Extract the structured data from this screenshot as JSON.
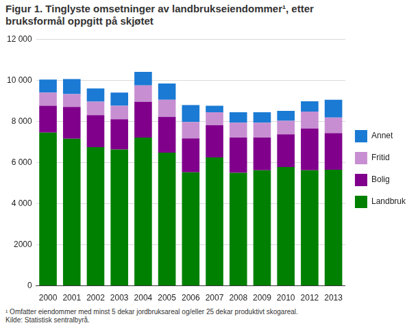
{
  "chart_data": {
    "type": "bar",
    "title": "Figur 1. Tinglyste omsetninger av landbrukseiendommer¹, etter bruksformål oppgitt på skjøtet",
    "annotations": [
      "¹ Omfatter eiendommer med minst 5 dekar jordbruksareal og/eller 25 dekar produktivt skogareal.",
      "Kilde: Statistisk sentralbyrå."
    ],
    "categories": [
      "2000",
      "2001",
      "2002",
      "2003",
      "2004",
      "2005",
      "2006",
      "2007",
      "2008",
      "2009",
      "2010",
      "2012",
      "2013"
    ],
    "series": [
      {
        "name": "Landbruk",
        "color": "#008000",
        "values": [
          7450,
          7150,
          6750,
          6630,
          7210,
          6480,
          5520,
          6250,
          5500,
          5620,
          5780,
          5620,
          5650
        ]
      },
      {
        "name": "Bolig",
        "color": "#80008c",
        "values": [
          1310,
          1550,
          1550,
          1470,
          1740,
          1740,
          1650,
          1560,
          1710,
          1590,
          1590,
          2030,
          1780
        ]
      },
      {
        "name": "Fritid",
        "color": "#c78fd1",
        "values": [
          640,
          630,
          660,
          660,
          800,
          830,
          800,
          630,
          730,
          730,
          660,
          830,
          760
        ]
      },
      {
        "name": "Annet",
        "color": "#1a7ad4",
        "values": [
          630,
          730,
          640,
          640,
          660,
          790,
          820,
          320,
          500,
          500,
          480,
          500,
          860
        ]
      }
    ],
    "stacked": true,
    "ylim": [
      0,
      12000
    ],
    "yticks": [
      0,
      2000,
      {
        "value": 4000,
        "label": "4 000"
      },
      {
        "value": 6000,
        "label": "6 000"
      },
      {
        "value": 8000,
        "label": "8 000"
      },
      {
        "value": 10000,
        "label": "10 000"
      },
      {
        "value": 12000,
        "label": "12 000"
      }
    ],
    "grid": true,
    "legend": "right"
  }
}
